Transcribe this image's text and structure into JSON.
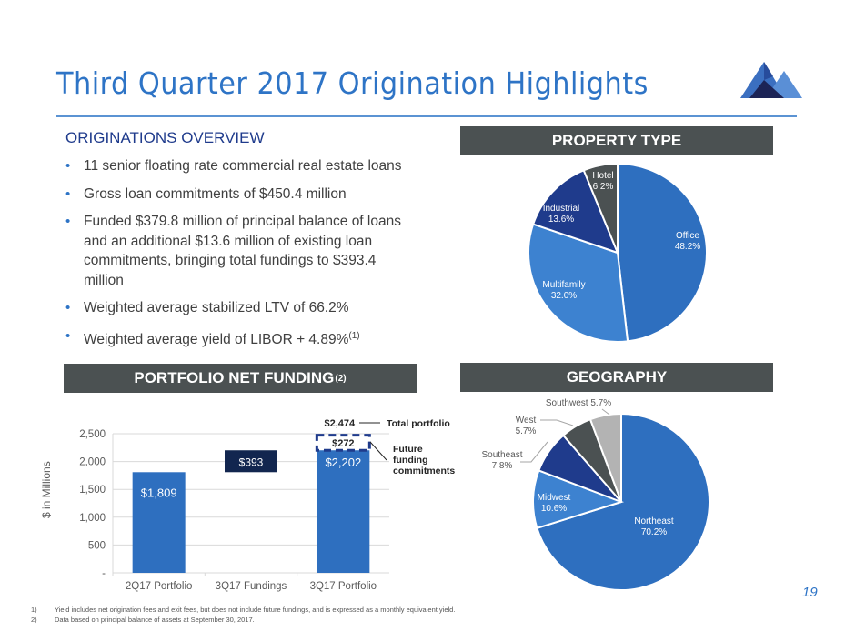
{
  "title": "Third Quarter 2017 Origination Highlights",
  "page_number": "19",
  "overview": {
    "heading": "ORIGINATIONS OVERVIEW",
    "bullets": [
      {
        "text": "11 senior floating rate commercial real estate loans"
      },
      {
        "text": "Gross loan commitments of $450.4 million"
      },
      {
        "text": "Funded $379.8 million of principal balance of loans and an additional $13.6 million of existing loan commitments, bringing total fundings to $393.4 million"
      },
      {
        "text": "Weighted average stabilized LTV of 66.2%"
      },
      {
        "text": "Weighted average yield of LIBOR + 4.89%",
        "sup": "(1)"
      }
    ]
  },
  "headers": {
    "property_type": "PROPERTY TYPE",
    "portfolio": "PORTFOLIO NET FUNDING",
    "portfolio_sup": "(2)",
    "geography": "GEOGRAPHY"
  },
  "footnotes": [
    {
      "num": "1)",
      "text": "Yield includes net origination fees and exit fees, but does not include future fundings, and is expressed as a monthly equivalent yield."
    },
    {
      "num": "2)",
      "text": "Data based on principal balance of assets at September 30, 2017."
    }
  ],
  "colors": {
    "accent": "#2e74c6",
    "header_bg": "#4b5152",
    "dark_navy": "#12264f"
  },
  "chart_data": [
    {
      "type": "bar",
      "title": "PORTFOLIO NET FUNDING(2)",
      "ylabel": "$ in Millions",
      "xlabel": "",
      "ylim": [
        0,
        2500
      ],
      "yticks": [
        0,
        500,
        1000,
        1500,
        2000,
        2500
      ],
      "ytick_labels": [
        "-",
        "500",
        "1,000",
        "1,500",
        "2,000",
        "2,500"
      ],
      "grid": true,
      "categories": [
        "2Q17 Portfolio",
        "3Q17 Fundings",
        "3Q17 Portfolio"
      ],
      "bars": [
        {
          "category": "2Q17 Portfolio",
          "base": 0,
          "value": 1809,
          "label": "$1,809",
          "color": "#2e6fbf"
        },
        {
          "category": "3Q17 Fundings",
          "base": 1809,
          "value": 393,
          "label": "$393",
          "color": "#12264f"
        },
        {
          "category": "3Q17 Portfolio",
          "base": 0,
          "value": 2202,
          "label": "$2,202",
          "color": "#2e6fbf"
        }
      ],
      "future_funding": {
        "category": "3Q17 Portfolio",
        "base": 2202,
        "value": 272,
        "label": "$272",
        "style": "dashed",
        "color": "#1f3b8c"
      },
      "total": {
        "value": 2474,
        "label": "$2,474"
      },
      "annotations": [
        {
          "text": "Total portfolio",
          "target": "total"
        },
        {
          "text": "Future funding commitments",
          "target": "future_funding"
        }
      ]
    },
    {
      "type": "pie",
      "title": "PROPERTY TYPE",
      "slices": [
        {
          "label": "Office",
          "value": 48.2,
          "display": "48.2%",
          "color": "#2e6fbf"
        },
        {
          "label": "Multifamily",
          "value": 32.0,
          "display": "32.0%",
          "color": "#3d82d0"
        },
        {
          "label": "Industrial",
          "value": 13.6,
          "display": "13.6%",
          "color": "#1f3b8c"
        },
        {
          "label": "Hotel",
          "value": 6.2,
          "display": "6.2%",
          "color": "#4b5152"
        }
      ]
    },
    {
      "type": "pie",
      "title": "GEOGRAPHY",
      "slices": [
        {
          "label": "Northeast",
          "value": 70.2,
          "display": "70.2%",
          "color": "#2e6fbf"
        },
        {
          "label": "Midwest",
          "value": 10.6,
          "display": "10.6%",
          "color": "#3d82d0"
        },
        {
          "label": "Southeast",
          "value": 7.8,
          "display": "7.8%",
          "color": "#1f3b8c"
        },
        {
          "label": "West",
          "value": 5.7,
          "display": "5.7%",
          "color": "#4b5152"
        },
        {
          "label": "Southwest",
          "value": 5.7,
          "display": "5.7%",
          "color": "#b3b3b3"
        }
      ]
    }
  ]
}
